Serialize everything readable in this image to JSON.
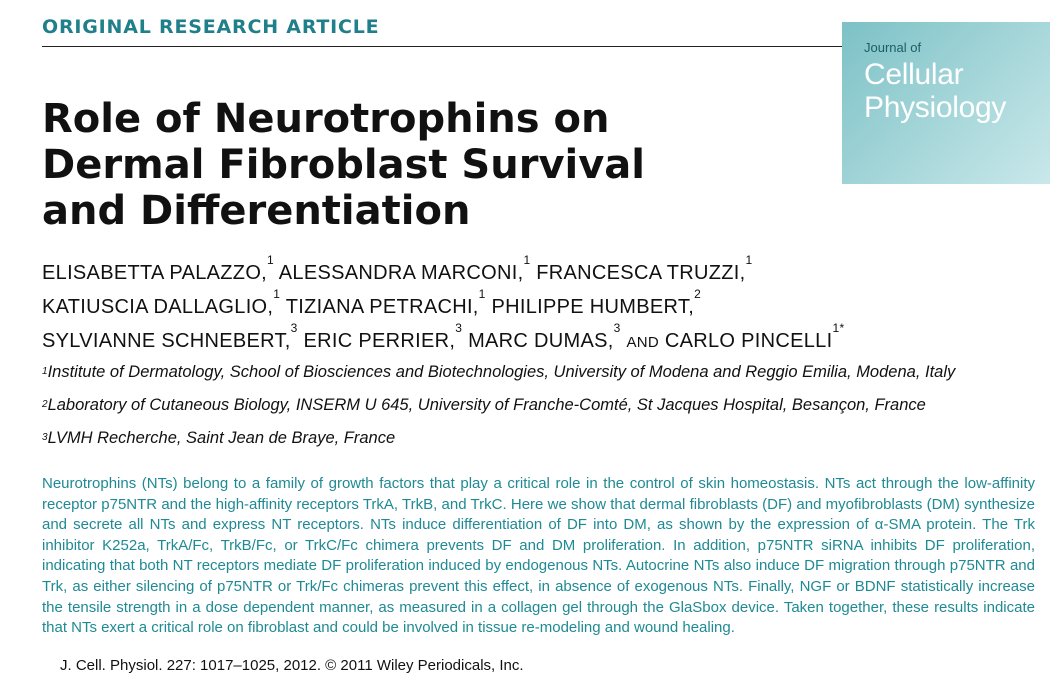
{
  "header": {
    "section_label": "ORIGINAL RESEARCH ARTICLE",
    "journal_of": "Journal of",
    "journal_name": "Cellular\nPhysiology"
  },
  "title": "Role of Neurotrophins on\nDermal Fibroblast Survival\nand Differentiation",
  "authors": [
    {
      "name": "ELISABETTA PALAZZO,",
      "sup": "1"
    },
    {
      "name": "ALESSANDRA MARCONI,",
      "sup": "1"
    },
    {
      "name": "FRANCESCA TRUZZI,",
      "sup": "1"
    },
    {
      "name": "KATIUSCIA DALLAGLIO,",
      "sup": "1"
    },
    {
      "name": "TIZIANA PETRACHI,",
      "sup": "1"
    },
    {
      "name": "PHILIPPE HUMBERT,",
      "sup": "2"
    },
    {
      "name": "SYLVIANNE SCHNEBERT,",
      "sup": "3"
    },
    {
      "name": "ERIC PERRIER,",
      "sup": "3"
    },
    {
      "name": "MARC DUMAS,",
      "sup": "3"
    },
    {
      "name": "CARLO PINCELLI",
      "sup": "1*"
    }
  ],
  "and_word": "AND",
  "affiliations": [
    {
      "num": "1",
      "text": "Institute of Dermatology, School of Biosciences and Biotechnologies, University of Modena and Reggio Emilia, Modena, Italy"
    },
    {
      "num": "2",
      "text": "Laboratory of Cutaneous Biology, INSERM U 645, University of Franche-Comté, St Jacques Hospital, Besançon, France"
    },
    {
      "num": "3",
      "text": "LVMH Recherche, Saint Jean de Braye, France"
    }
  ],
  "abstract": "Neurotrophins (NTs) belong to a family of growth factors that play a critical role in the control of skin homeostasis. NTs act through the low-affinity receptor p75NTR and the high-affinity receptors TrkA, TrkB, and TrkC. Here we show that dermal fibroblasts (DF) and myofibroblasts (DM) synthesize and secrete all NTs and express NT receptors. NTs induce differentiation of DF into DM, as shown by the expression of α-SMA protein. The Trk inhibitor K252a, TrkA/Fc, TrkB/Fc, or TrkC/Fc chimera prevents DF and DM proliferation. In addition, p75NTR siRNA inhibits DF proliferation, indicating that both NT receptors mediate DF proliferation induced by endogenous NTs. Autocrine NTs also induce DF migration through p75NTR and Trk, as either silencing of p75NTR or Trk/Fc chimeras prevent this effect, in absence of exogenous NTs. Finally, NGF or BDNF statistically increase the tensile strength in a dose dependent manner, as measured in a collagen gel through the GlaSbox device. Taken together, these results indicate that NTs exert a critical role on fibroblast and could be involved in tissue re-modeling and wound healing.",
  "citation": "J. Cell. Physiol. 227: 1017–1025, 2012. © 2011 Wiley Periodicals, Inc.",
  "colors": {
    "accent": "#1f7f8a",
    "abstract_text": "#1f8a94",
    "logo_bg": "#8ccbcf"
  }
}
